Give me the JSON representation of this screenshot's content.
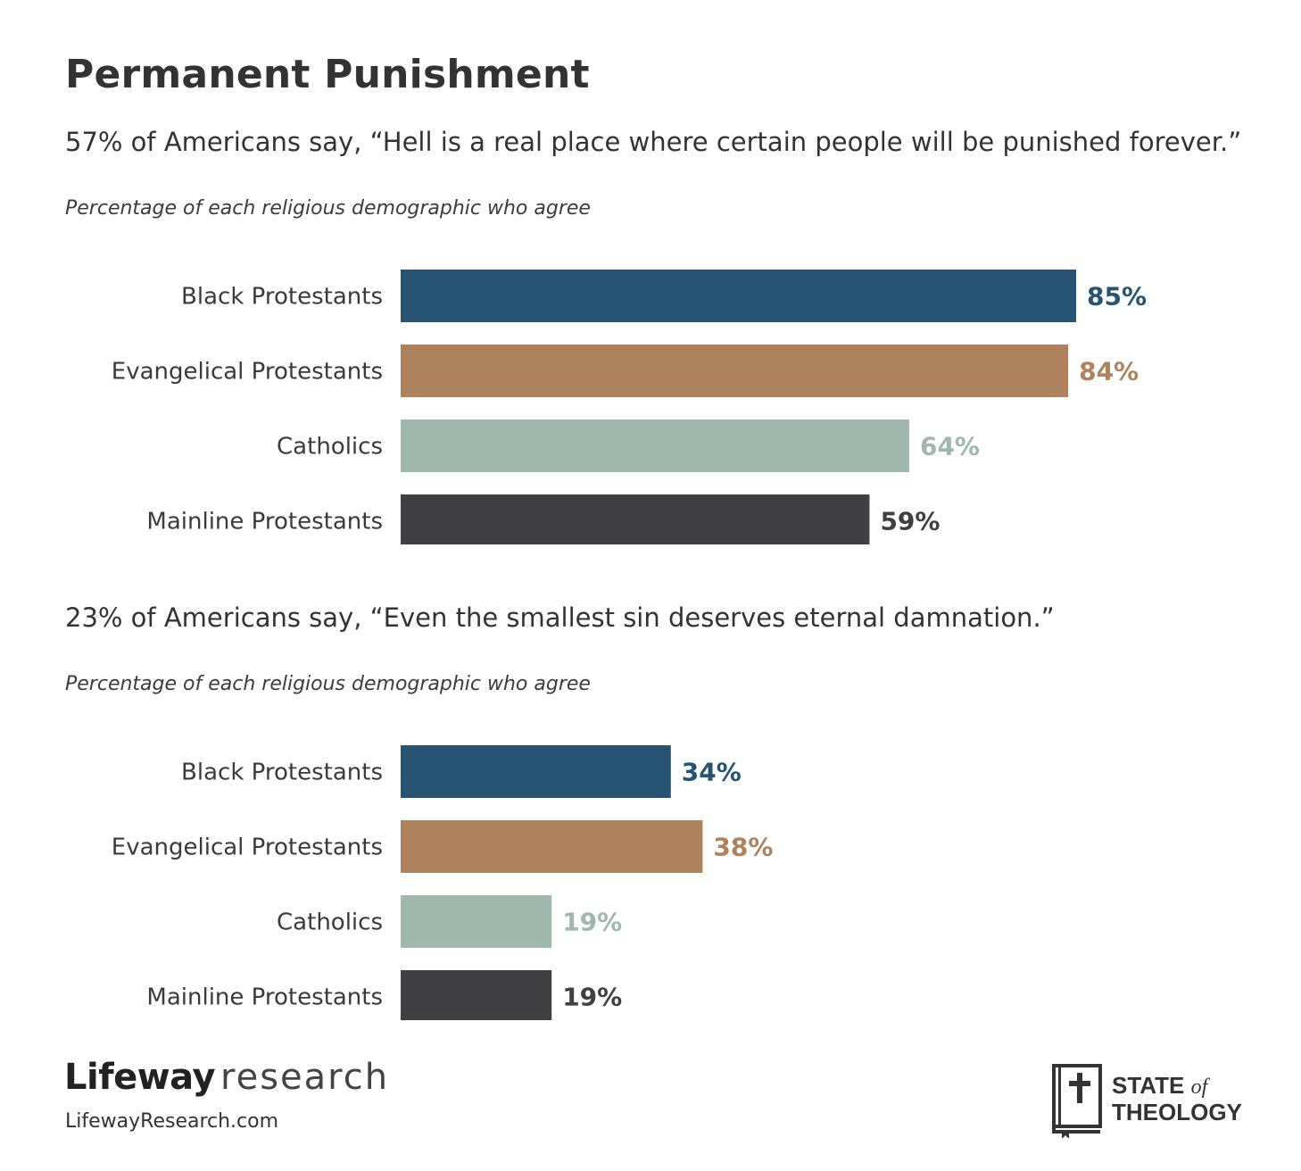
{
  "title": "Permanent Punishment",
  "colors": {
    "Black Protestants": "#275472",
    "Evangelical Protestants": "#ad825d",
    "Catholics": "#a0b8ab",
    "Mainline Protestants": "#404042"
  },
  "chart_data": [
    {
      "type": "bar",
      "orientation": "horizontal",
      "title": "57% of Americans say, “Hell is a real place where certain people will be punished forever.”",
      "subtitle": "Percentage of each religious demographic who agree",
      "categories": [
        "Black Protestants",
        "Evangelical Protestants",
        "Catholics",
        "Mainline Protestants"
      ],
      "values": [
        85,
        84,
        64,
        59
      ],
      "value_labels": [
        "85%",
        "84%",
        "64%",
        "59%"
      ],
      "xlim": [
        0,
        100
      ],
      "grid": false
    },
    {
      "type": "bar",
      "orientation": "horizontal",
      "title": "23% of Americans say, “Even the smallest sin deserves eternal damnation.”",
      "subtitle": "Percentage of each religious demographic who agree",
      "categories": [
        "Black Protestants",
        "Evangelical Protestants",
        "Catholics",
        "Mainline Protestants"
      ],
      "values": [
        34,
        38,
        19,
        19
      ],
      "value_labels": [
        "34%",
        "38%",
        "19%",
        "19%"
      ],
      "xlim": [
        0,
        100
      ],
      "grid": false
    }
  ],
  "footer": {
    "brand_bold": "Lifeway",
    "brand_light": "research",
    "url": "LifewayResearch.com",
    "logo_line1": "STATE",
    "logo_of": "of",
    "logo_line2": "THEOLOGY"
  }
}
